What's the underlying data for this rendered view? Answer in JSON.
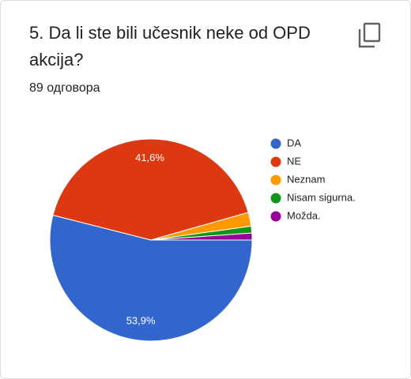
{
  "chart_data": {
    "type": "pie",
    "title": "5. Da li ste bili učesnik neke od OPD akcija?",
    "subtitle": "89 одговора",
    "categories": [
      "DA",
      "NE",
      "Neznam",
      "Nisam sigurna.",
      "Možda."
    ],
    "values": [
      53.9,
      41.6,
      2.2,
      1.1,
      1.1
    ],
    "value_labels": [
      "53,9%",
      "41,6%",
      null,
      null,
      null
    ],
    "colors": [
      "#3366cc",
      "#dc3912",
      "#ff9900",
      "#109618",
      "#990099"
    ]
  }
}
